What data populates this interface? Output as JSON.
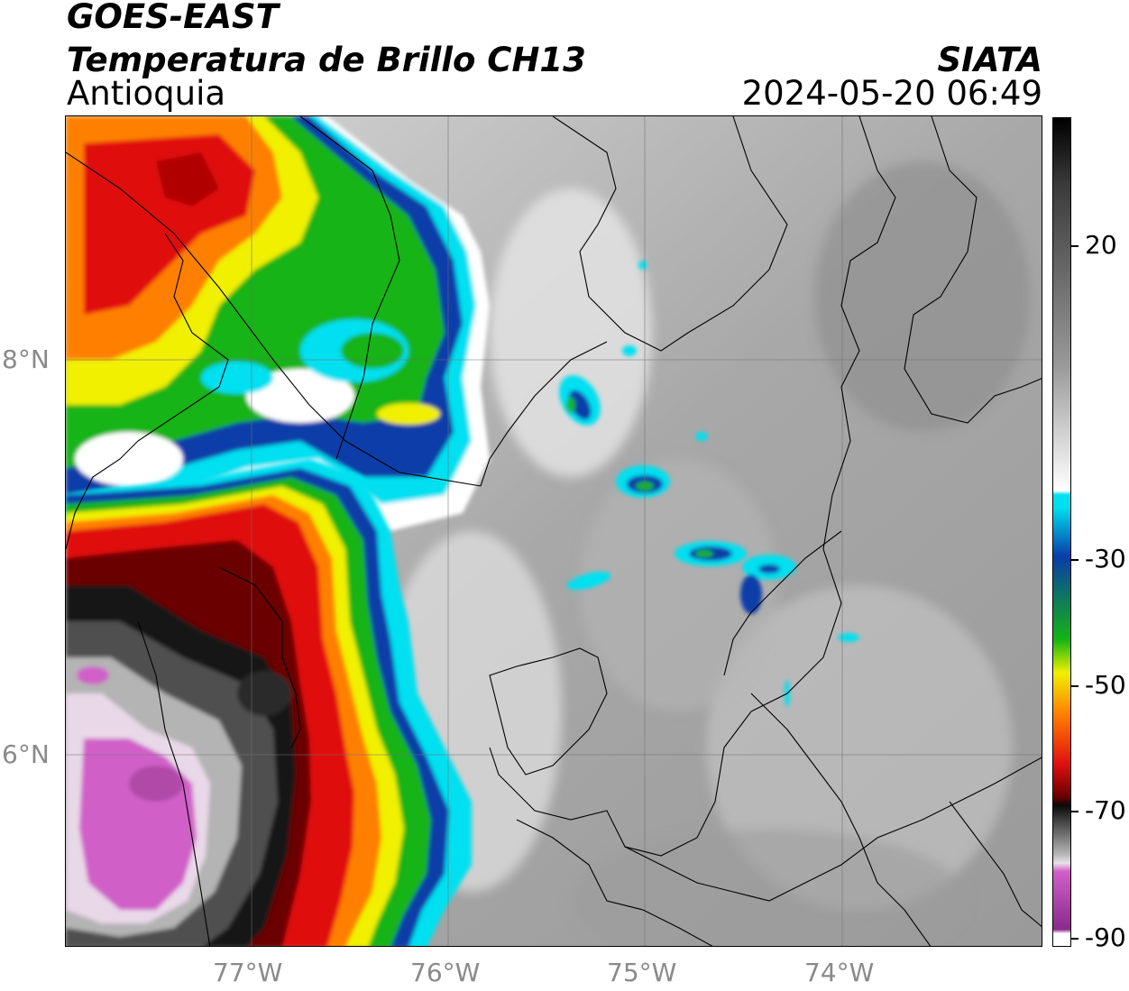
{
  "header": {
    "satellite": "GOES-EAST",
    "product": "Temperatura de Brillo CH13",
    "region": "Antioquia",
    "agency": "SIATA",
    "datetime": "2024-05-20 06:49"
  },
  "axes": {
    "lat_labels": [
      "8°N",
      "6°N"
    ],
    "lon_labels": [
      "77°W",
      "76°W",
      "75°W",
      "74°W"
    ]
  },
  "colorbar": {
    "tick_labels": [
      "20",
      "-30",
      "-50",
      "-70",
      "-90"
    ],
    "tick_values": [
      20,
      -30,
      -50,
      -70,
      -90
    ],
    "range": [
      -90,
      35
    ],
    "colors": {
      "warm_gray": "#9a9a9a",
      "cyan": "#00e0f0",
      "blue": "#0a3ca8",
      "green": "#14b414",
      "yellow": "#f0f000",
      "orange": "#ff8000",
      "red": "#e01010",
      "dark_red": "#6a0000",
      "black": "#0a0a0a",
      "magenta": "#d060c8",
      "purple": "#8a2a8a"
    }
  }
}
